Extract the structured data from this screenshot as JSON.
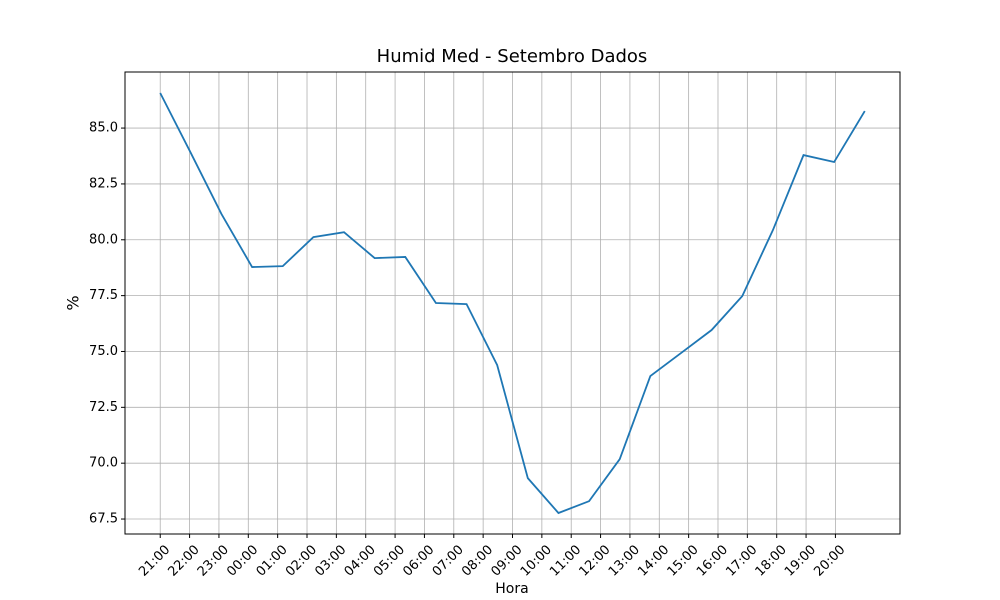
{
  "chart_data": {
    "type": "line",
    "title": "Humid Med - Setembro Dados",
    "x_label": "Hora",
    "y_label": "%",
    "x": [
      0,
      1,
      2,
      3,
      4,
      5,
      6,
      7,
      8,
      9,
      10,
      11,
      12,
      13,
      14,
      15,
      16,
      17,
      18,
      19,
      20,
      21,
      22,
      23
    ],
    "series": [
      {
        "name": "Humid Med",
        "color": "#1f77b4",
        "values": [
          86.57,
          83.88,
          81.15,
          78.78,
          78.82,
          80.12,
          80.34,
          79.18,
          79.23,
          77.17,
          77.12,
          74.39,
          69.33,
          67.77,
          68.3,
          70.18,
          73.9,
          74.93,
          75.96,
          77.48,
          80.43,
          83.79,
          83.48,
          85.76
        ]
      }
    ],
    "xlim": [
      -1.15,
      24.15
    ],
    "xticks": [
      {
        "value": 0,
        "label": "21:00"
      },
      {
        "value": 0.9583,
        "label": "22:00"
      },
      {
        "value": 1.9167,
        "label": "23:00"
      },
      {
        "value": 2.875,
        "label": "00:00"
      },
      {
        "value": 3.8333,
        "label": "01:00"
      },
      {
        "value": 4.7917,
        "label": "02:00"
      },
      {
        "value": 5.75,
        "label": "03:00"
      },
      {
        "value": 6.7083,
        "label": "04:00"
      },
      {
        "value": 7.6667,
        "label": "05:00"
      },
      {
        "value": 8.625,
        "label": "06:00"
      },
      {
        "value": 9.5833,
        "label": "07:00"
      },
      {
        "value": 10.5417,
        "label": "08:00"
      },
      {
        "value": 11.5,
        "label": "09:00"
      },
      {
        "value": 12.4583,
        "label": "10:00"
      },
      {
        "value": 13.4167,
        "label": "11:00"
      },
      {
        "value": 14.375,
        "label": "12:00"
      },
      {
        "value": 15.3333,
        "label": "13:00"
      },
      {
        "value": 16.2917,
        "label": "14:00"
      },
      {
        "value": 17.25,
        "label": "15:00"
      },
      {
        "value": 18.2083,
        "label": "16:00"
      },
      {
        "value": 19.1667,
        "label": "17:00"
      },
      {
        "value": 20.125,
        "label": "18:00"
      },
      {
        "value": 21.0833,
        "label": "19:00"
      },
      {
        "value": 22.0417,
        "label": "20:00"
      }
    ],
    "ylim": [
      66.83,
      87.51
    ],
    "yticks": [
      67.5,
      {
        "value": 70,
        "label": "70.0"
      },
      72.5,
      {
        "value": 75,
        "label": "75.0"
      },
      77.5,
      {
        "value": 80,
        "label": "80.0"
      },
      82.5,
      {
        "value": 85,
        "label": "85.0"
      }
    ],
    "grid": true
  }
}
